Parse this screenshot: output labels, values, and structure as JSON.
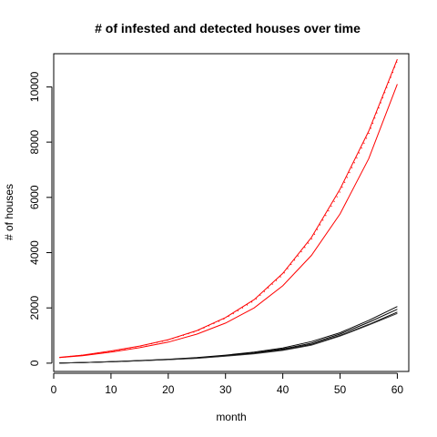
{
  "chart_data": {
    "type": "line",
    "title": "# of infested and detected houses over time",
    "xlabel": "month",
    "ylabel": "# of houses",
    "xlim": [
      0,
      62
    ],
    "ylim": [
      -300,
      11200
    ],
    "xticks": [
      0,
      10,
      20,
      30,
      40,
      50,
      60
    ],
    "yticks": [
      0,
      2000,
      4000,
      6000,
      8000,
      10000
    ],
    "grid": false,
    "x": [
      1,
      5,
      10,
      15,
      20,
      25,
      30,
      35,
      40,
      45,
      50,
      55,
      60
    ],
    "series": [
      {
        "color": "#ff0000",
        "style": "solid",
        "values": [
          200,
          270,
          400,
          560,
          760,
          1050,
          1450,
          2000,
          2800,
          3900,
          5400,
          7400,
          10100
        ]
      },
      {
        "color": "#ff0000",
        "style": "solid",
        "values": [
          210,
          290,
          440,
          620,
          850,
          1180,
          1650,
          2300,
          3250,
          4550,
          6300,
          8400,
          11000
        ]
      },
      {
        "color": "#ff0000",
        "style": "dotted",
        "values": [
          205,
          285,
          430,
          610,
          840,
          1160,
          1620,
          2260,
          3200,
          4480,
          6200,
          8300,
          10950
        ]
      },
      {
        "color": "#000000",
        "style": "solid",
        "values": [
          5,
          20,
          50,
          90,
          130,
          180,
          260,
          350,
          480,
          680,
          1000,
          1400,
          1850
        ]
      },
      {
        "color": "#000000",
        "style": "solid",
        "values": [
          5,
          22,
          55,
          95,
          140,
          200,
          290,
          400,
          550,
          780,
          1100,
          1550,
          2050
        ]
      },
      {
        "color": "#000000",
        "style": "solid",
        "values": [
          5,
          20,
          52,
          92,
          135,
          190,
          270,
          370,
          510,
          720,
          1050,
          1480,
          1950
        ]
      },
      {
        "color": "#333333",
        "style": "solid",
        "values": [
          5,
          18,
          48,
          88,
          128,
          175,
          250,
          340,
          460,
          650,
          980,
          1380,
          1800
        ]
      }
    ]
  }
}
